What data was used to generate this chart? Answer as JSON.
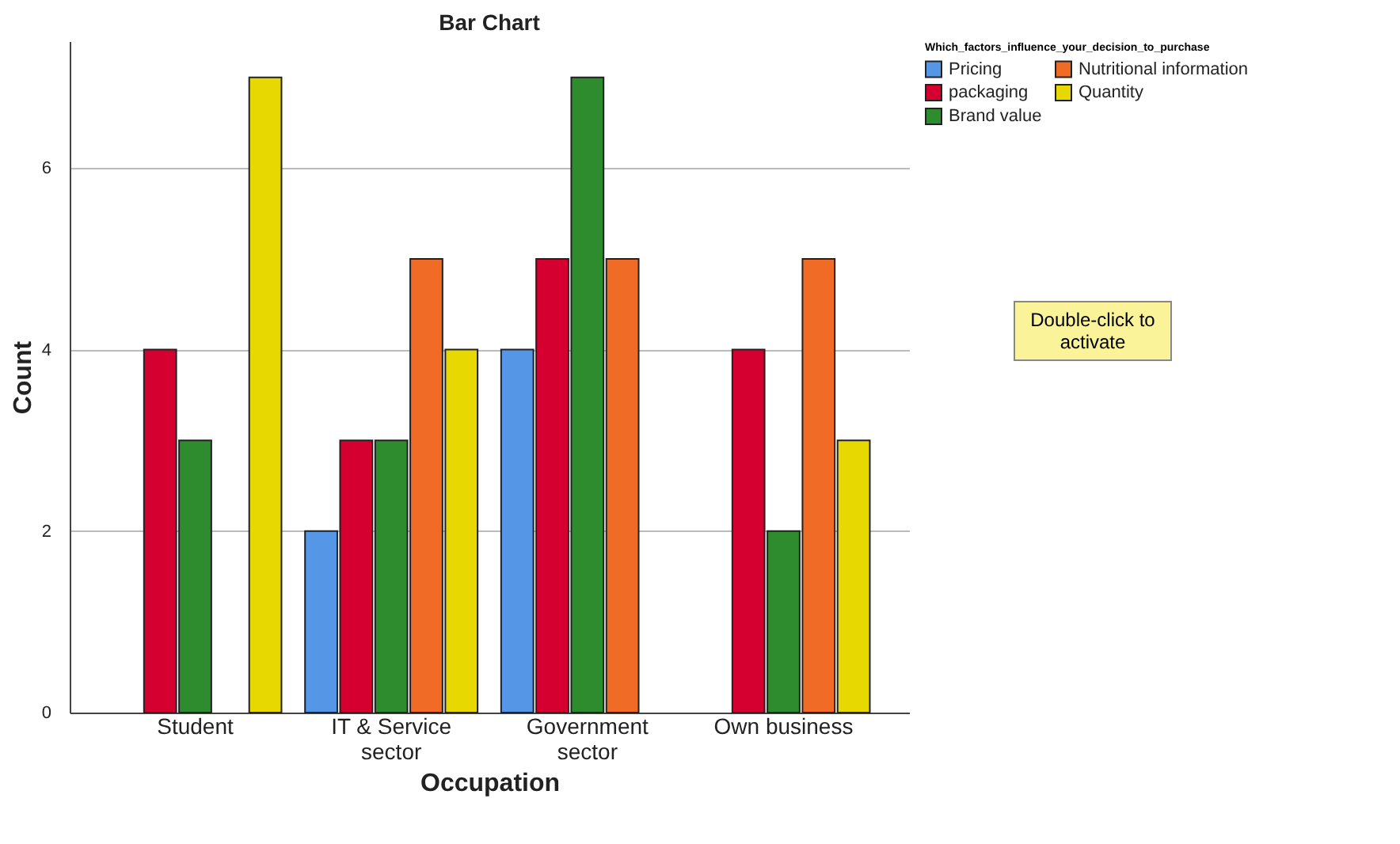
{
  "chart_data": {
    "type": "bar",
    "title": "Bar Chart",
    "xlabel": "Occupation",
    "ylabel": "Count",
    "legend_title": "Which_factors_influence_your_decision_to_purchase",
    "categories": [
      "Student",
      "IT & Service sector",
      "Government sector",
      "Own business"
    ],
    "series": [
      {
        "name": "Pricing",
        "color": "#5596e6",
        "values": [
          null,
          2,
          4,
          null
        ]
      },
      {
        "name": "packaging",
        "color": "#d5002f",
        "values": [
          4,
          3,
          5,
          4
        ]
      },
      {
        "name": "Brand value",
        "color": "#2e8b2e",
        "values": [
          3,
          3,
          7,
          2
        ]
      },
      {
        "name": "Nutritional information",
        "color": "#f06c26",
        "values": [
          null,
          5,
          5,
          5
        ]
      },
      {
        "name": "Quantity",
        "color": "#e6d800",
        "values": [
          7,
          4,
          null,
          3
        ]
      }
    ],
    "ylim": [
      0,
      7.4
    ],
    "yticks": [
      0,
      2,
      4,
      6
    ],
    "grid": "y",
    "legend": "top right",
    "annotations": [
      "Double-click to activate"
    ]
  }
}
